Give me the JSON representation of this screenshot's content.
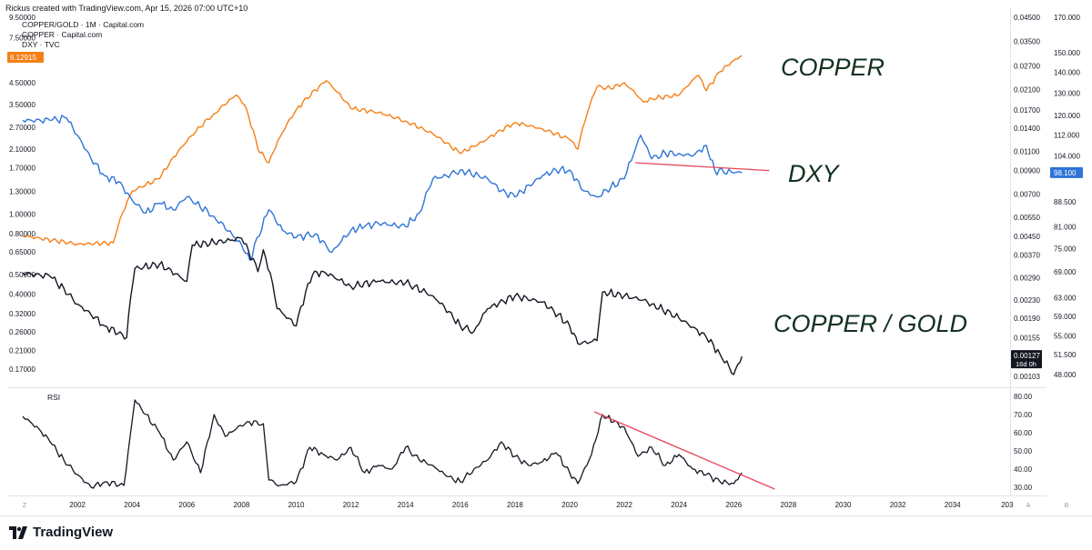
{
  "header": {
    "credit": "Rickus created with TradingView.com, Apr 15, 2026 07:00 UTC+10",
    "legend": [
      "COPPER/GOLD · 1M · Capital.com",
      "COPPER · Capital.com",
      "DXY · TVC"
    ],
    "left_badge": "6.12915"
  },
  "annotations": {
    "copper": "COPPER",
    "dxy": "DXY",
    "copper_gold": "COPPER / GOLD"
  },
  "footer": {
    "brand": "TradingView"
  },
  "chart_data": [
    {
      "type": "line",
      "title": "",
      "x_axis": {
        "ticks": [
          "2002",
          "2004",
          "2006",
          "2008",
          "2010",
          "2012",
          "2014",
          "2016",
          "2018",
          "2020",
          "2022",
          "2024",
          "2026",
          "2028",
          "2030",
          "2032",
          "2034",
          "203"
        ],
        "corner_left": "Z",
        "corner_right": "A",
        "corner_far": "B"
      },
      "left_axis": {
        "label": "COPPER",
        "scale": "log",
        "ticks": [
          "9.50000",
          "7.50000",
          "5.90000",
          "4.50000",
          "3.50000",
          "2.70000",
          "2.10000",
          "1.70000",
          "1.30000",
          "1.00000",
          "0.80000",
          "0.65000",
          "0.50000",
          "0.40000",
          "0.32000",
          "0.26000",
          "0.21000",
          "0.17000"
        ],
        "last": "6.12915"
      },
      "middle_axis": {
        "label": "COPPER/GOLD",
        "scale": "log",
        "ticks": [
          "0.04500",
          "0.03500",
          "0.02700",
          "0.02100",
          "0.01700",
          "0.01400",
          "0.01100",
          "0.00900",
          "0.00700",
          "0.00550",
          "0.00450",
          "0.00370",
          "0.00290",
          "0.00230",
          "0.00190",
          "0.00155",
          "0.00103"
        ],
        "last": "0.00127",
        "last_sub": "16d 0h"
      },
      "right_axis": {
        "label": "DXY",
        "scale": "log",
        "ticks": [
          "170.000",
          "150.000",
          "140.000",
          "130.000",
          "120.000",
          "112.000",
          "104.000",
          "88.500",
          "81.000",
          "75.000",
          "69.000",
          "63.000",
          "59.000",
          "55.000",
          "51.500",
          "48.000"
        ],
        "last": "98.100"
      },
      "series": [
        {
          "name": "COPPER",
          "color": "#f57f17",
          "axis": "left",
          "x": [
            2000.0,
            2002.0,
            2003.3,
            2004.0,
            2005.0,
            2006.0,
            2007.0,
            2007.8,
            2008.1,
            2008.6,
            2009.0,
            2010.0,
            2011.1,
            2012.0,
            2013.0,
            2014.0,
            2015.0,
            2016.0,
            2016.8,
            2018.0,
            2019.0,
            2020.0,
            2020.3,
            2021.0,
            2021.5,
            2022.0,
            2022.7,
            2023.0,
            2024.0,
            2024.7,
            2025.0,
            2025.5,
            2026.0,
            2026.3
          ],
          "values": [
            0.78,
            0.71,
            0.72,
            1.3,
            1.5,
            2.3,
            3.15,
            3.9,
            3.5,
            2.1,
            1.8,
            3.3,
            4.6,
            3.35,
            3.2,
            2.9,
            2.5,
            2.0,
            2.28,
            2.85,
            2.65,
            2.35,
            2.1,
            4.3,
            4.2,
            4.5,
            3.6,
            3.75,
            3.9,
            4.9,
            4.1,
            5.1,
            5.8,
            6.12915
          ]
        },
        {
          "name": "DXY",
          "color": "#2f74d8",
          "axis": "right",
          "x": [
            2000.0,
            2001.0,
            2001.6,
            2002.0,
            2002.5,
            2003.0,
            2003.5,
            2004.0,
            2004.5,
            2005.0,
            2005.5,
            2006.0,
            2007.0,
            2008.0,
            2008.3,
            2009.0,
            2009.5,
            2010.0,
            2010.7,
            2011.3,
            2012.0,
            2012.5,
            2013.0,
            2014.0,
            2014.5,
            2015.0,
            2015.5,
            2016.0,
            2017.0,
            2017.5,
            2018.0,
            2019.0,
            2019.5,
            2020.0,
            2020.5,
            2021.0,
            2021.5,
            2022.0,
            2022.6,
            2023.0,
            2023.5,
            2024.0,
            2024.5,
            2025.0,
            2025.3,
            2026.0,
            2026.3
          ],
          "values": [
            118,
            118,
            119,
            112,
            103,
            97,
            95,
            89,
            85,
            88,
            86,
            90,
            84,
            76,
            72,
            86,
            80,
            78,
            79,
            74,
            80,
            81,
            82,
            81,
            85,
            96,
            97,
            99,
            96,
            92,
            90,
            97,
            99,
            99,
            92,
            90,
            93,
            96,
            112,
            103,
            105,
            105,
            104,
            108,
            99,
            98,
            98.1
          ]
        },
        {
          "name": "COPPER/GOLD",
          "color": "#131722",
          "axis": "middle",
          "x": [
            2000.0,
            2001.0,
            2002.0,
            2003.0,
            2003.8,
            2004.1,
            2005.0,
            2006.0,
            2006.2,
            2007.0,
            2008.0,
            2008.6,
            2008.8,
            2009.3,
            2010.0,
            2010.6,
            2011.0,
            2012.0,
            2013.0,
            2014.0,
            2015.0,
            2016.0,
            2016.5,
            2017.0,
            2018.0,
            2019.0,
            2020.0,
            2020.3,
            2021.0,
            2021.2,
            2022.0,
            2022.7,
            2023.0,
            2024.0,
            2025.0,
            2025.5,
            2026.0,
            2026.3
          ],
          "values": [
            0.00305,
            0.00295,
            0.0022,
            0.00175,
            0.00155,
            0.0032,
            0.00335,
            0.0028,
            0.0041,
            0.0042,
            0.0044,
            0.0031,
            0.0039,
            0.0021,
            0.00175,
            0.003,
            0.0031,
            0.00265,
            0.0028,
            0.00275,
            0.0024,
            0.00175,
            0.00165,
            0.0021,
            0.0024,
            0.00225,
            0.00175,
            0.00145,
            0.0015,
            0.0025,
            0.0024,
            0.0023,
            0.0022,
            0.0019,
            0.00155,
            0.0013,
            0.00105,
            0.00127
          ]
        }
      ],
      "trendlines": [
        {
          "color": "#e8465a",
          "axis": "right",
          "from": [
            2022.4,
            101.6
          ],
          "to": [
            2027.3,
            98.8
          ]
        }
      ]
    },
    {
      "type": "line",
      "title": "RSI",
      "y_axis": {
        "ticks": [
          "80.00",
          "70.00",
          "60.00",
          "50.00",
          "40.00",
          "30.00"
        ],
        "range": [
          26,
          82
        ]
      },
      "series": [
        {
          "name": "RSI",
          "color": "#131722",
          "x": [
            2000.0,
            2000.6,
            2001.0,
            2001.5,
            2002.0,
            2002.5,
            2003.0,
            2003.7,
            2004.1,
            2004.5,
            2005.0,
            2005.5,
            2006.0,
            2006.5,
            2007.0,
            2007.4,
            2007.8,
            2008.2,
            2008.8,
            2009.0,
            2009.4,
            2010.0,
            2010.5,
            2011.0,
            2011.5,
            2012.0,
            2012.5,
            2013.0,
            2013.5,
            2014.0,
            2014.5,
            2015.0,
            2015.5,
            2016.0,
            2016.5,
            2017.0,
            2017.5,
            2018.0,
            2018.5,
            2019.0,
            2019.5,
            2020.0,
            2020.3,
            2020.8,
            2021.2,
            2021.6,
            2022.0,
            2022.5,
            2023.0,
            2023.5,
            2024.0,
            2024.5,
            2025.0,
            2025.5,
            2026.0,
            2026.3
          ],
          "values": [
            69,
            62,
            55,
            45,
            37,
            30,
            33,
            31,
            78,
            70,
            60,
            45,
            55,
            38,
            70,
            58,
            62,
            66,
            65,
            34,
            31,
            33,
            52,
            48,
            45,
            52,
            38,
            42,
            40,
            52,
            45,
            42,
            36,
            33,
            40,
            45,
            55,
            47,
            42,
            44,
            49,
            38,
            32,
            48,
            70,
            66,
            63,
            47,
            52,
            42,
            48,
            40,
            37,
            33,
            32,
            38
          ]
        }
      ],
      "trendlines": [
        {
          "color": "#e8465a",
          "from": [
            2020.9,
            71.5
          ],
          "to": [
            2027.5,
            29.0
          ]
        }
      ]
    }
  ]
}
